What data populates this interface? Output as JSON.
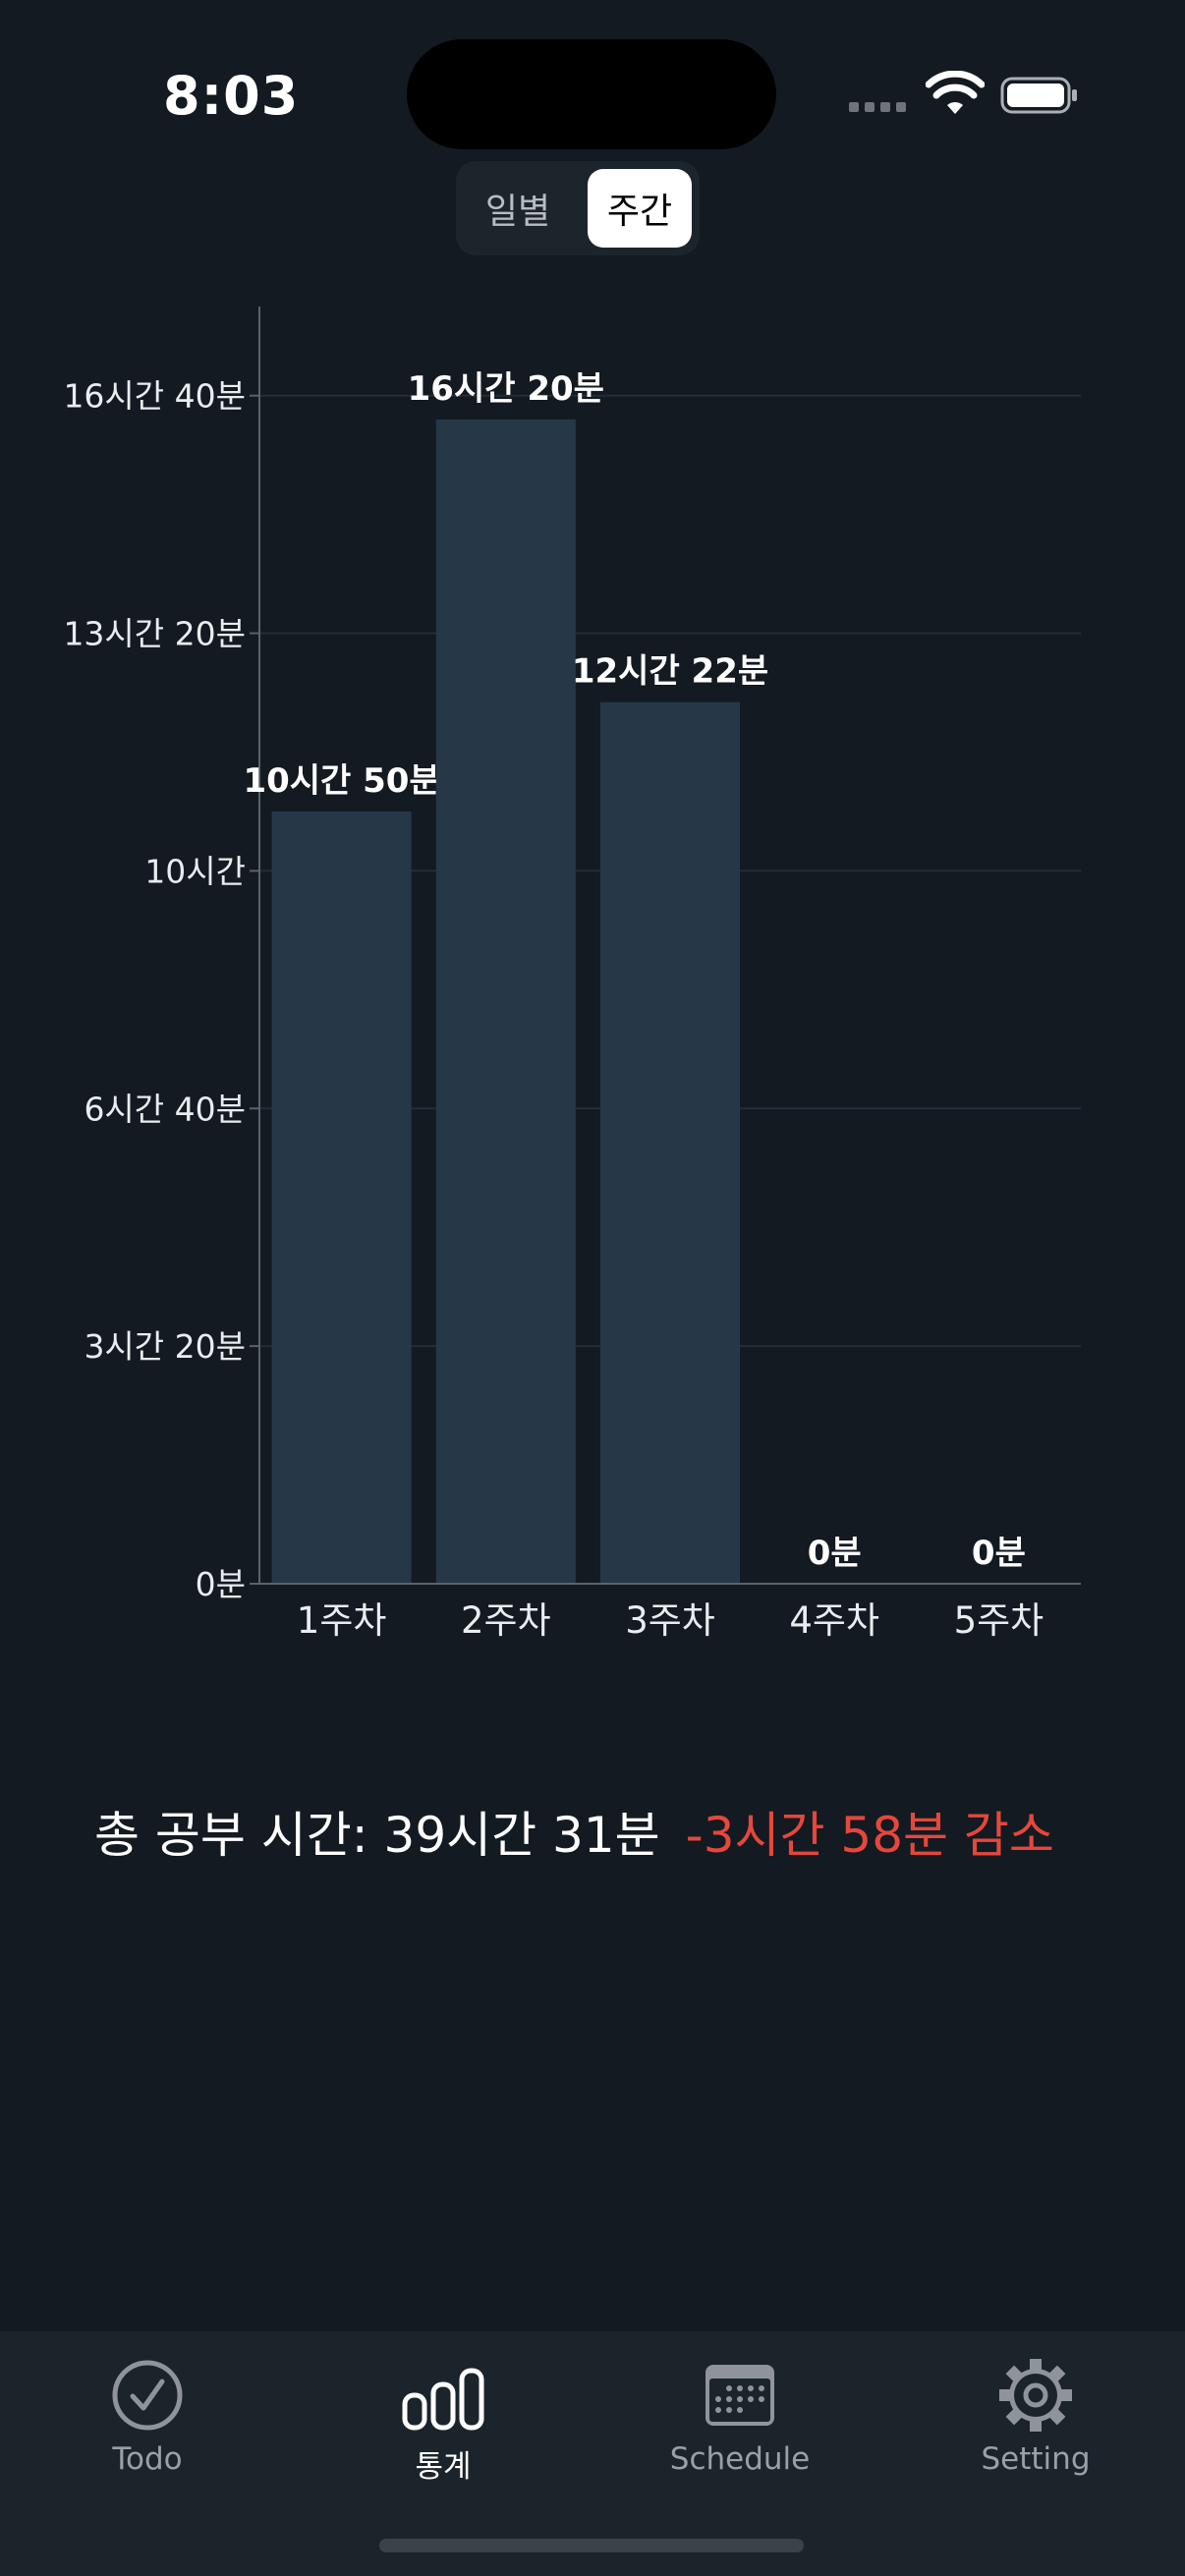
{
  "status_bar": {
    "time": "8:03"
  },
  "segmented_control": {
    "options": [
      "일별",
      "주간"
    ],
    "selected": "주간"
  },
  "chart_data": {
    "type": "bar",
    "categories": [
      "1주차",
      "2주차",
      "3주차",
      "4주차",
      "5주차"
    ],
    "values": [
      650,
      980,
      742,
      0,
      0
    ],
    "value_labels": [
      "10시간 50분",
      "16시간 20분",
      "12시간 22분",
      "0분",
      "0분"
    ],
    "value_unit": "minutes",
    "y_ticks": [
      0,
      200,
      400,
      600,
      800,
      1000
    ],
    "y_tick_labels": [
      "0분",
      "3시간 20분",
      "6시간 40분",
      "10시간",
      "13시간 20분",
      "16시간 40분"
    ],
    "ylim": [
      0,
      1075
    ],
    "grid": true,
    "bar_color": "#263847"
  },
  "summary": {
    "total": "총 공부 시간: 39시간 31분",
    "change": "-3시간 58분 감소",
    "change_color": "#e5473c"
  },
  "tab_bar": {
    "items": [
      {
        "label": "Todo",
        "icon": "checkmark-circle-icon",
        "active": false
      },
      {
        "label": "통계",
        "icon": "bar-chart-icon",
        "active": true
      },
      {
        "label": "Schedule",
        "icon": "calendar-icon",
        "active": false
      },
      {
        "label": "Setting",
        "icon": "gear-icon",
        "active": false
      }
    ]
  }
}
